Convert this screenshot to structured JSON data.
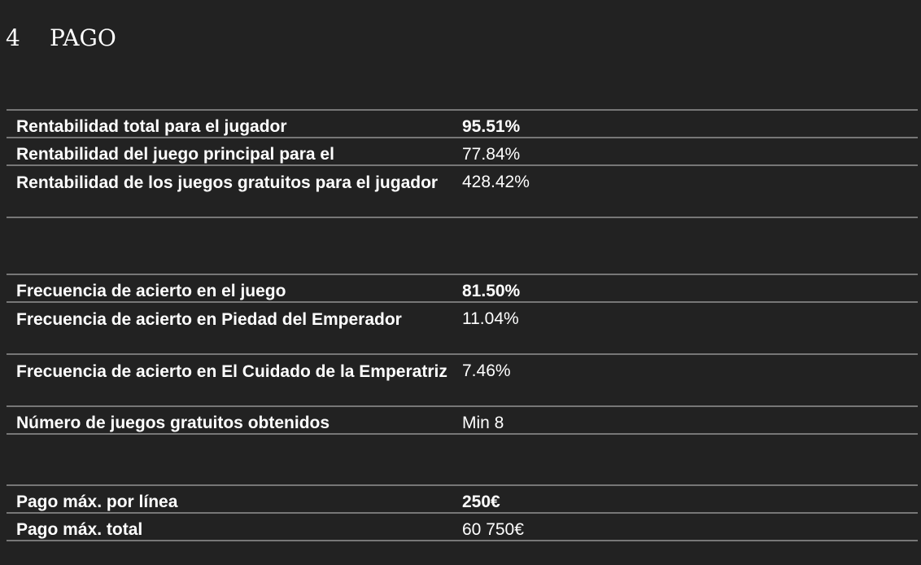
{
  "section": {
    "number": "4",
    "title": "PAGO"
  },
  "rtp_table": {
    "rows": [
      {
        "label": "Rentabilidad total para el jugador",
        "value": "95.51%"
      },
      {
        "label": "Rentabilidad del juego principal para el",
        "value": "77.84%"
      },
      {
        "label": "Rentabilidad de los juegos gratuitos para el jugador",
        "value": "428.42%"
      }
    ]
  },
  "frequency_table": {
    "rows": [
      {
        "label": "Frecuencia de acierto en el juego",
        "value": "81.50%"
      },
      {
        "label": "Frecuencia de acierto en Piedad del Emperador",
        "value": "11.04%"
      },
      {
        "label": "Frecuencia de acierto en El Cuidado de la Emperatriz",
        "value": "7.46%"
      },
      {
        "label": "Número de juegos gratuitos obtenidos",
        "value": "Min 8"
      }
    ]
  },
  "payout_table": {
    "rows": [
      {
        "label": "Pago máx. por línea",
        "value": "250€"
      },
      {
        "label": "Pago máx. total",
        "value": "60 750€"
      }
    ]
  }
}
